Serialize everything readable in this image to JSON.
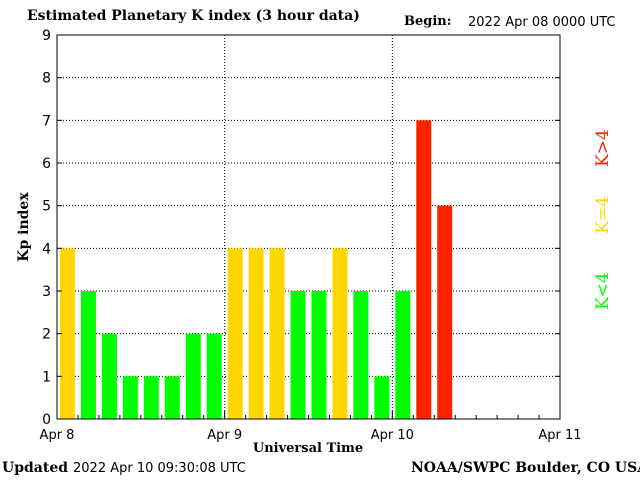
{
  "header": {
    "title": "Estimated Planetary K index (3 hour data)",
    "begin_label": "Begin:",
    "begin_value": "2022 Apr 08 0000 UTC"
  },
  "footer": {
    "updated_label": "Updated",
    "updated_value": "2022 Apr 10 09:30:08 UTC",
    "credit": "NOAA/SWPC Boulder, CO USA"
  },
  "legend": {
    "quiet_label": "K<4",
    "moderate_label": "K=4",
    "storm_label": "K>4"
  },
  "colors": {
    "quiet": "#00ff00",
    "moderate": "#ffd700",
    "storm": "#ff2200"
  },
  "chart_data": {
    "type": "bar",
    "ylabel": "Kp index",
    "xlabel": "Universal Time",
    "ylim": [
      0,
      9
    ],
    "yticks": [
      "0",
      "1",
      "2",
      "3",
      "4",
      "5",
      "6",
      "7",
      "8",
      "9"
    ],
    "xticks": [
      "Apr 8",
      "Apr 9",
      "Apr 10",
      "Apr 11"
    ],
    "grid": true,
    "interval_hours": 3,
    "values": [
      4,
      3,
      2,
      1,
      1,
      1,
      2,
      2,
      4,
      4,
      4,
      3,
      3,
      4,
      3,
      1,
      3,
      7,
      5
    ]
  }
}
